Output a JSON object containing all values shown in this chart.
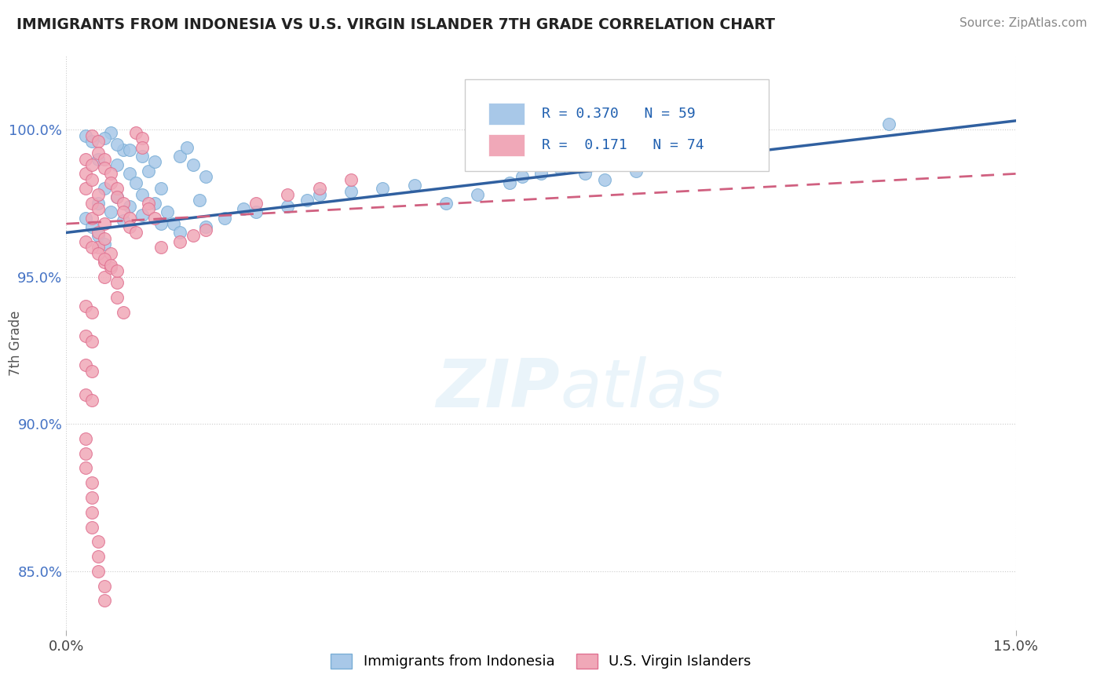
{
  "title": "IMMIGRANTS FROM INDONESIA VS U.S. VIRGIN ISLANDER 7TH GRADE CORRELATION CHART",
  "source": "Source: ZipAtlas.com",
  "ylabel": "7th Grade",
  "legend_label_blue": "Immigrants from Indonesia",
  "legend_label_pink": "U.S. Virgin Islanders",
  "R_blue": 0.37,
  "N_blue": 59,
  "R_pink": 0.171,
  "N_pink": 74,
  "blue_color": "#a8c8e8",
  "blue_edge": "#7aaed6",
  "blue_line": "#3060a0",
  "pink_color": "#f0a8b8",
  "pink_edge": "#e07090",
  "pink_line": "#d06080",
  "xlim": [
    0.0,
    0.15
  ],
  "ylim": [
    0.83,
    1.025
  ],
  "blue_x": [
    0.005,
    0.008,
    0.009,
    0.01,
    0.011,
    0.012,
    0.013,
    0.014,
    0.015,
    0.016,
    0.017,
    0.018,
    0.019,
    0.02,
    0.021,
    0.022,
    0.007,
    0.006,
    0.008,
    0.01,
    0.012,
    0.014,
    0.005,
    0.007,
    0.009,
    0.006,
    0.008,
    0.01,
    0.012,
    0.015,
    0.003,
    0.004,
    0.003,
    0.004,
    0.005,
    0.006,
    0.04,
    0.05,
    0.06,
    0.07,
    0.075,
    0.08,
    0.085,
    0.09,
    0.03,
    0.035,
    0.038,
    0.025,
    0.028,
    0.018,
    0.022,
    0.045,
    0.055,
    0.065,
    0.072,
    0.078,
    0.082,
    0.11,
    0.13
  ],
  "blue_y": [
    0.99,
    0.988,
    0.993,
    0.985,
    0.982,
    0.978,
    0.986,
    0.975,
    0.98,
    0.972,
    0.968,
    0.991,
    0.994,
    0.988,
    0.976,
    0.984,
    0.999,
    0.997,
    0.995,
    0.993,
    0.991,
    0.989,
    0.975,
    0.972,
    0.969,
    0.98,
    0.977,
    0.974,
    0.971,
    0.968,
    0.998,
    0.996,
    0.97,
    0.967,
    0.964,
    0.961,
    0.978,
    0.98,
    0.975,
    0.982,
    0.985,
    0.988,
    0.983,
    0.986,
    0.972,
    0.974,
    0.976,
    0.97,
    0.973,
    0.965,
    0.967,
    0.979,
    0.981,
    0.978,
    0.984,
    0.987,
    0.985,
    0.998,
    1.002
  ],
  "pink_x": [
    0.004,
    0.005,
    0.005,
    0.006,
    0.006,
    0.007,
    0.007,
    0.008,
    0.008,
    0.009,
    0.009,
    0.01,
    0.01,
    0.011,
    0.011,
    0.012,
    0.012,
    0.013,
    0.013,
    0.014,
    0.003,
    0.003,
    0.004,
    0.004,
    0.005,
    0.005,
    0.006,
    0.006,
    0.003,
    0.004,
    0.004,
    0.005,
    0.005,
    0.006,
    0.006,
    0.007,
    0.007,
    0.008,
    0.008,
    0.009,
    0.003,
    0.004,
    0.005,
    0.006,
    0.007,
    0.008,
    0.003,
    0.004,
    0.003,
    0.004,
    0.003,
    0.004,
    0.003,
    0.004,
    0.03,
    0.035,
    0.015,
    0.018,
    0.02,
    0.022,
    0.003,
    0.003,
    0.003,
    0.004,
    0.004,
    0.004,
    0.004,
    0.005,
    0.005,
    0.005,
    0.006,
    0.006,
    0.04,
    0.045
  ],
  "pink_y": [
    0.998,
    0.996,
    0.992,
    0.99,
    0.987,
    0.985,
    0.982,
    0.98,
    0.977,
    0.975,
    0.972,
    0.97,
    0.967,
    0.965,
    0.999,
    0.997,
    0.994,
    0.975,
    0.973,
    0.97,
    0.985,
    0.98,
    0.975,
    0.97,
    0.965,
    0.96,
    0.955,
    0.95,
    0.99,
    0.988,
    0.983,
    0.978,
    0.973,
    0.968,
    0.963,
    0.958,
    0.953,
    0.948,
    0.943,
    0.938,
    0.962,
    0.96,
    0.958,
    0.956,
    0.954,
    0.952,
    0.94,
    0.938,
    0.93,
    0.928,
    0.92,
    0.918,
    0.91,
    0.908,
    0.975,
    0.978,
    0.96,
    0.962,
    0.964,
    0.966,
    0.895,
    0.89,
    0.885,
    0.88,
    0.875,
    0.87,
    0.865,
    0.86,
    0.855,
    0.85,
    0.845,
    0.84,
    0.98,
    0.983
  ]
}
